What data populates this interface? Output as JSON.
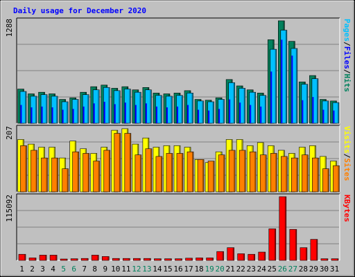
{
  "chart_data": {
    "type": "bar",
    "title": "Daily usage for December 2020",
    "days": [
      "1",
      "2",
      "3",
      "4",
      "5",
      "6",
      "7",
      "8",
      "9",
      "10",
      "11",
      "12",
      "13",
      "14",
      "15",
      "16",
      "17",
      "18",
      "19",
      "20",
      "21",
      "22",
      "23",
      "24",
      "25",
      "26",
      "27",
      "28",
      "29",
      "30",
      "31"
    ],
    "weekend_days": [
      "5",
      "6",
      "12",
      "13",
      "19",
      "20",
      "26",
      "27"
    ],
    "panels": [
      {
        "id": "hits-files-pages",
        "ymax_label": "1288",
        "ymax": 1288,
        "legend": [
          {
            "text": "Pages",
            "color": "#00C0FF"
          },
          {
            "text": "/",
            "color": "#000000"
          },
          {
            "text": "Files",
            "color": "#0000FF"
          },
          {
            "text": "/",
            "color": "#000000"
          },
          {
            "text": "Hits",
            "color": "#00805C"
          }
        ],
        "series": [
          {
            "name": "Hits",
            "color": "#00805C",
            "values": [
              430,
              370,
              390,
              370,
              300,
              320,
              390,
              460,
              480,
              440,
              460,
              420,
              450,
              380,
              370,
              380,
              410,
              300,
              290,
              320,
              550,
              470,
              420,
              380,
              1050,
              1288,
              1030,
              520,
              600,
              300,
              280
            ]
          },
          {
            "name": "Files",
            "color": "#0000FF",
            "values": [
              230,
              200,
              210,
              200,
              170,
              180,
              210,
              250,
              270,
              240,
              260,
              230,
              250,
              210,
              200,
              210,
              230,
              170,
              160,
              180,
              300,
              260,
              230,
              210,
              650,
              1050,
              850,
              290,
              330,
              170,
              160
            ]
          },
          {
            "name": "Pages",
            "color": "#00C0FF",
            "values": [
              400,
              340,
              360,
              340,
              270,
              300,
              360,
              420,
              450,
              410,
              430,
              390,
              420,
              350,
              340,
              350,
              380,
              280,
              270,
              300,
              510,
              440,
              390,
              350,
              930,
              1170,
              940,
              490,
              560,
              280,
              260
            ]
          }
        ]
      },
      {
        "id": "visits-sites",
        "ymax_label": "207",
        "ymax": 207,
        "legend": [
          {
            "text": "Visits",
            "color": "#FFFF00"
          },
          {
            "text": "/",
            "color": "#000000"
          },
          {
            "text": "Sites",
            "color": "#FF8000"
          }
        ],
        "series": [
          {
            "name": "Visits",
            "color": "#FFFF00",
            "values": [
              170,
              155,
              145,
              145,
              110,
              165,
              140,
              125,
              145,
              200,
              205,
              155,
              175,
              145,
              150,
              150,
              145,
              105,
              95,
              130,
              170,
              170,
              150,
              160,
              150,
              135,
              125,
              145,
              150,
              115,
              100
            ]
          },
          {
            "name": "Sites",
            "color": "#FF8000",
            "values": [
              150,
              135,
              110,
              110,
              75,
              130,
              125,
              100,
              135,
              190,
              190,
              120,
              140,
              115,
              125,
              125,
              130,
              105,
              100,
              120,
              135,
              135,
              130,
              120,
              125,
              115,
              110,
              120,
              110,
              75,
              85
            ]
          }
        ]
      },
      {
        "id": "kbytes",
        "ymax_label": "115092",
        "ymax": 115092,
        "legend": [
          {
            "text": "KBytes",
            "color": "#FF0000"
          }
        ],
        "series": [
          {
            "name": "KBytes",
            "color": "#FF0000",
            "values": [
              11000,
              4500,
              9500,
              9500,
              2500,
              3000,
              3500,
              9500,
              7000,
              3500,
              3500,
              3500,
              3500,
              3000,
              3000,
              3000,
              4000,
              4500,
              4500,
              16000,
              23000,
              12000,
              11000,
              15000,
              57000,
              115092,
              56000,
              23000,
              38000,
              3000,
              3000
            ]
          }
        ]
      }
    ]
  }
}
